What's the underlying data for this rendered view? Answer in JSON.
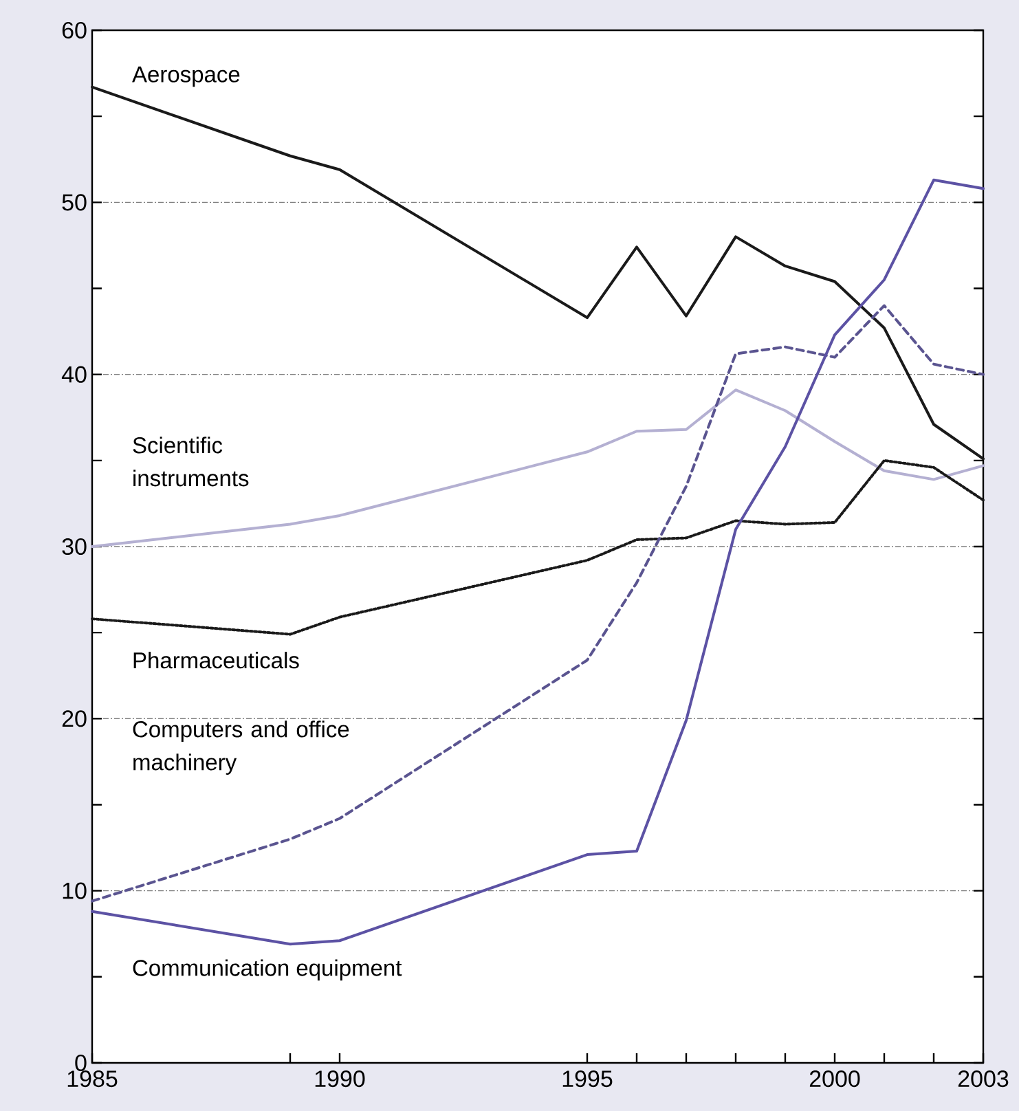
{
  "chart_data": {
    "type": "line",
    "x": [
      1985,
      1989,
      1990,
      1995,
      1996,
      1997,
      1998,
      1999,
      2000,
      2001,
      2002,
      2003
    ],
    "series": [
      {
        "name": "Aerospace",
        "color": "#1a1a1a",
        "line_style": "solid",
        "values": [
          56.7,
          52.7,
          51.9,
          43.3,
          47.4,
          43.4,
          48.0,
          46.3,
          45.4,
          42.7,
          37.1,
          35.1
        ]
      },
      {
        "name": "Scientific instruments",
        "color": "#b4b0d2",
        "line_style": "solid",
        "values": [
          30.0,
          31.3,
          31.8,
          35.5,
          36.7,
          36.8,
          39.1,
          37.9,
          36.1,
          34.4,
          33.9,
          34.7
        ]
      },
      {
        "name": "Pharmaceuticals",
        "color": "#1a1a1a",
        "line_style": "dotted",
        "values": [
          25.8,
          24.9,
          25.9,
          29.2,
          30.4,
          30.5,
          31.5,
          31.3,
          31.4,
          35.0,
          34.6,
          32.7
        ]
      },
      {
        "name": "Computers and office machinery",
        "color": "#5a5490",
        "line_style": "dashed",
        "values": [
          9.4,
          13.0,
          14.2,
          23.4,
          27.9,
          33.5,
          41.2,
          41.6,
          41.0,
          44.0,
          40.6,
          40.0
        ]
      },
      {
        "name": "Communication equipment",
        "color": "#5c52a4",
        "line_style": "solid",
        "values": [
          8.8,
          6.9,
          7.1,
          12.1,
          12.3,
          19.9,
          31.0,
          35.8,
          42.3,
          45.5,
          51.3,
          50.8
        ]
      }
    ],
    "xlim": [
      1985,
      2003
    ],
    "xticks": [
      1985,
      {
        "value": 1989,
        "label": null
      },
      1990,
      1995,
      {
        "value": 1996,
        "label": null
      },
      {
        "value": 1997,
        "label": null
      },
      {
        "value": 1998,
        "label": null
      },
      {
        "value": 1999,
        "label": null
      },
      2000,
      {
        "value": 2001,
        "label": null
      },
      {
        "value": 2002,
        "label": null
      },
      2003
    ],
    "ylim": [
      0,
      60
    ],
    "yticks": [
      0,
      {
        "value": 5,
        "label": null
      },
      10,
      {
        "value": 15,
        "label": null
      },
      20,
      {
        "value": 25,
        "label": null
      },
      30,
      {
        "value": 35,
        "label": null
      },
      40,
      {
        "value": 45,
        "label": null
      },
      50,
      {
        "value": 55,
        "label": null
      },
      60
    ],
    "grid": "y"
  }
}
